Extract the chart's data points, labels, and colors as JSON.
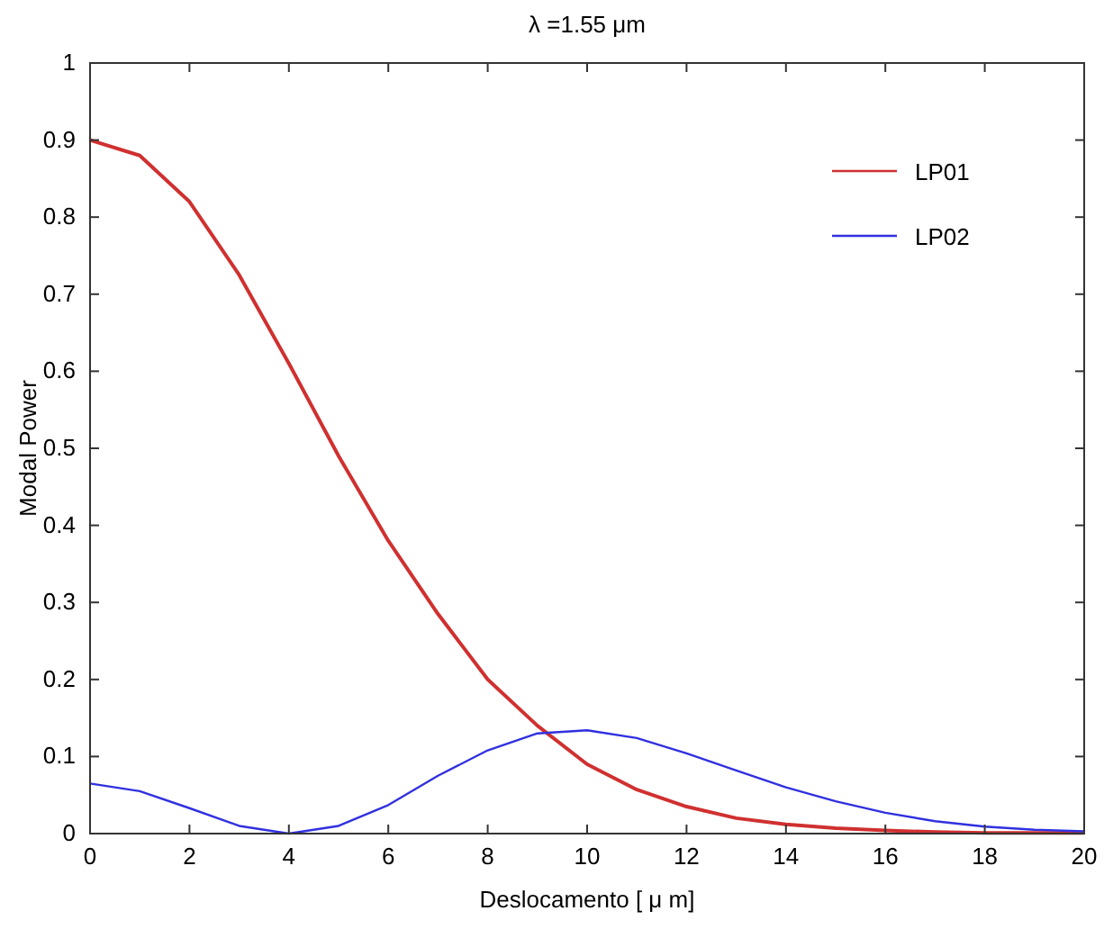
{
  "chart_data": {
    "type": "line",
    "title": "λ =1.55 μm",
    "xlabel": "Deslocamento [ μ m]",
    "ylabel": "Modal Power",
    "x": [
      0,
      1,
      2,
      3,
      4,
      5,
      6,
      7,
      8,
      9,
      10,
      11,
      12,
      13,
      14,
      15,
      16,
      17,
      18,
      19,
      20
    ],
    "series": [
      {
        "name": "LP01",
        "color": "#d03030",
        "values": [
          0.9,
          0.88,
          0.82,
          0.725,
          0.61,
          0.49,
          0.38,
          0.285,
          0.2,
          0.14,
          0.09,
          0.057,
          0.035,
          0.02,
          0.012,
          0.007,
          0.004,
          0.002,
          0.001,
          0.001,
          0.001
        ]
      },
      {
        "name": "LP02",
        "color": "#3030e0",
        "values": [
          0.065,
          0.055,
          0.033,
          0.01,
          0,
          0.01,
          0.037,
          0.075,
          0.108,
          0.13,
          0.134,
          0.124,
          0.104,
          0.082,
          0.06,
          0.042,
          0.027,
          0.016,
          0.009,
          0.005,
          0.003
        ]
      }
    ],
    "xlim": [
      0,
      20
    ],
    "xticks": [
      0,
      2,
      4,
      6,
      8,
      10,
      12,
      14,
      16,
      18,
      20
    ],
    "ylim": [
      0,
      1
    ],
    "yticks": [
      0,
      0.1,
      0.2,
      0.3,
      0.4,
      0.5,
      0.6,
      0.7,
      0.8,
      0.9,
      1
    ],
    "grid": false,
    "legend": "top right",
    "marker": "none",
    "line_style": "solid"
  }
}
